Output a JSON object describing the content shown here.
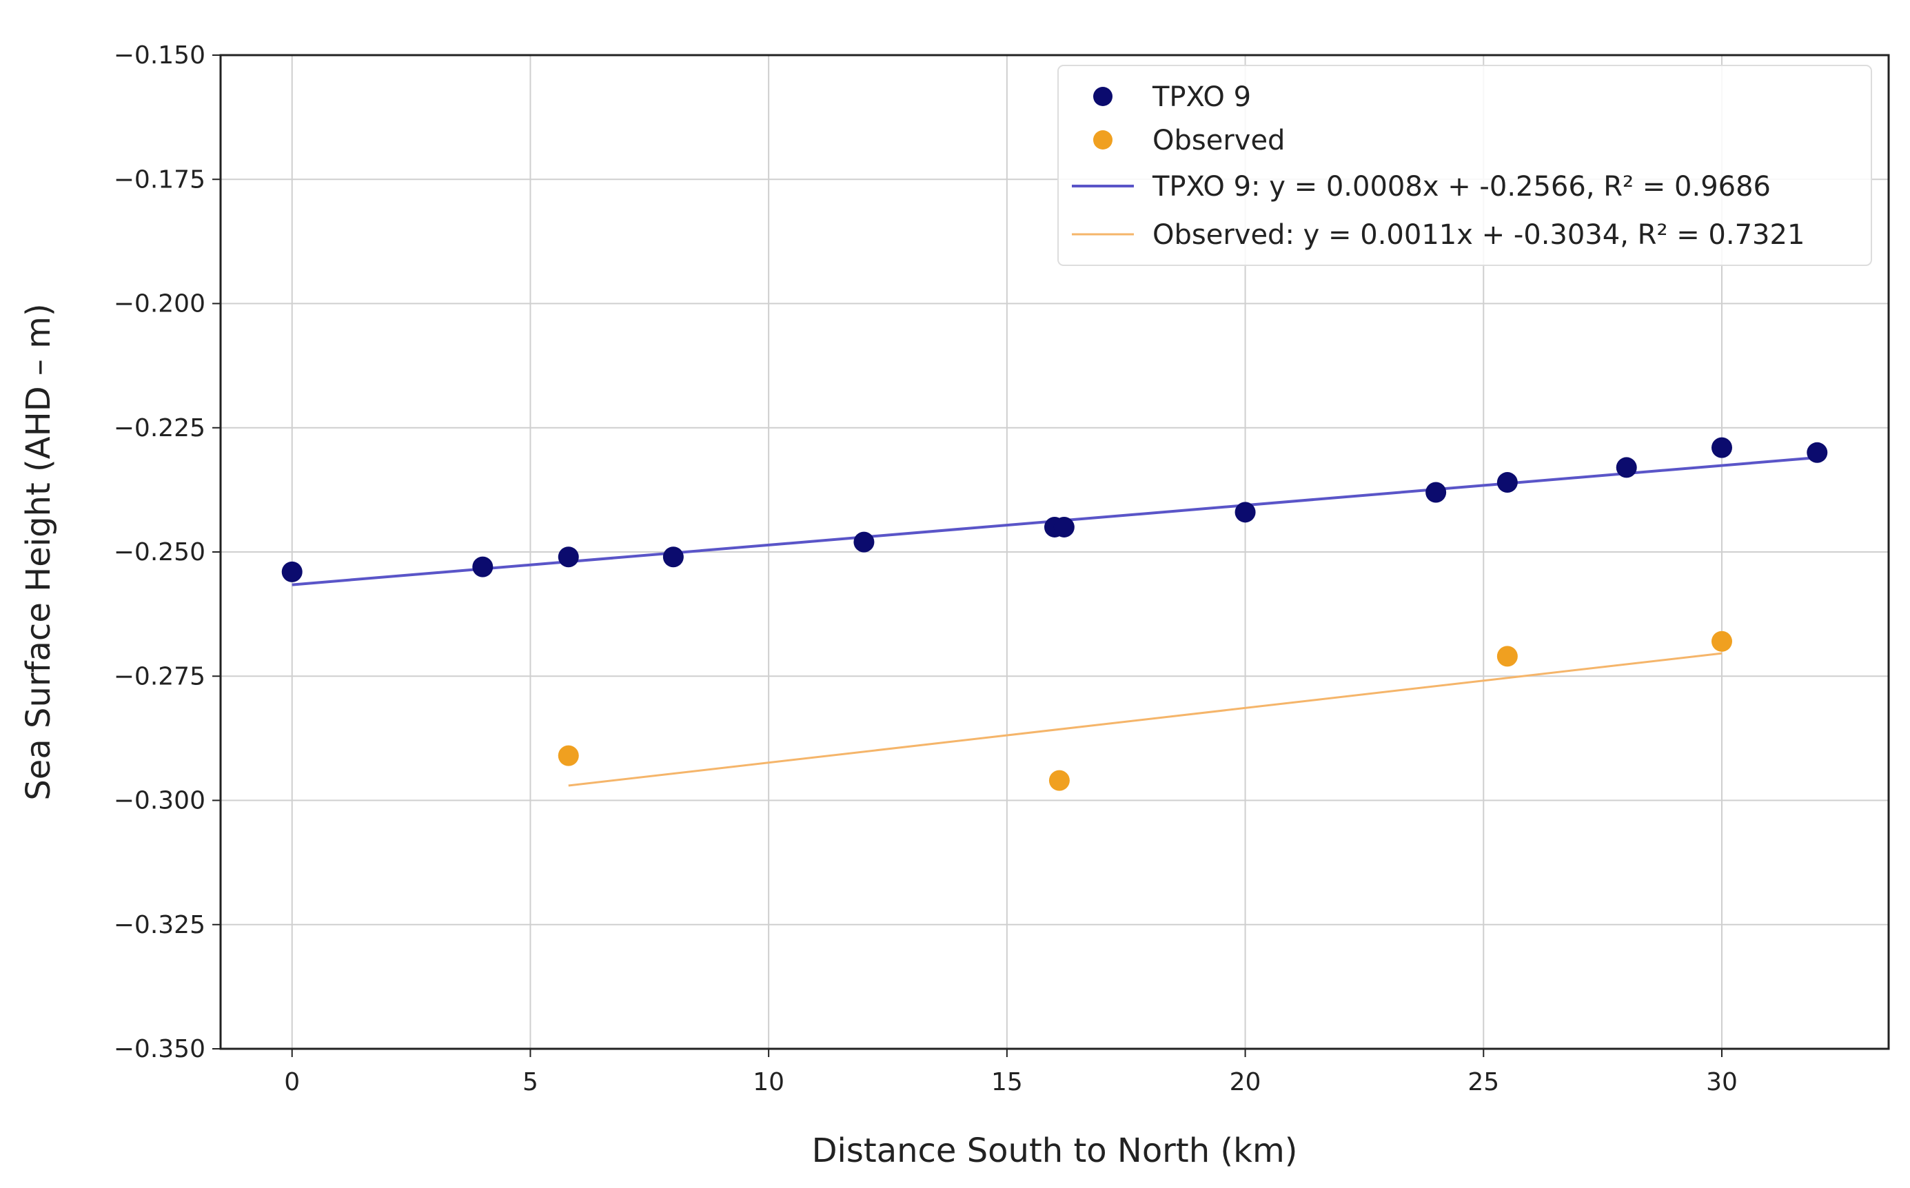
{
  "chart_data": {
    "type": "scatter",
    "title": "",
    "xlabel": "Distance South to North (km)",
    "ylabel": "Sea Surface Height (AHD – m)",
    "xlim": [
      -1.5,
      33.5
    ],
    "ylim": [
      -0.35,
      -0.15
    ],
    "x_ticks": [
      0,
      5,
      10,
      15,
      20,
      25,
      30
    ],
    "x_tick_labels": [
      "0",
      "5",
      "10",
      "15",
      "20",
      "25",
      "30"
    ],
    "y_ticks": [
      -0.35,
      -0.325,
      -0.3,
      -0.275,
      -0.25,
      -0.225,
      -0.2,
      -0.175,
      -0.15
    ],
    "y_tick_labels": [
      "−0.350",
      "−0.325",
      "−0.300",
      "−0.275",
      "−0.250",
      "−0.225",
      "−0.200",
      "−0.175",
      "−0.150"
    ],
    "grid": true,
    "legend_position": "top-right",
    "series": [
      {
        "name": "TPXO 9",
        "kind": "scatter",
        "color": "#0b0b6e",
        "points": [
          {
            "x": 0,
            "y": -0.254
          },
          {
            "x": 4,
            "y": -0.253
          },
          {
            "x": 5.8,
            "y": -0.251
          },
          {
            "x": 8,
            "y": -0.251
          },
          {
            "x": 12,
            "y": -0.248
          },
          {
            "x": 16,
            "y": -0.245
          },
          {
            "x": 16.2,
            "y": -0.245
          },
          {
            "x": 20,
            "y": -0.242
          },
          {
            "x": 24,
            "y": -0.238
          },
          {
            "x": 25.5,
            "y": -0.236
          },
          {
            "x": 28,
            "y": -0.233
          },
          {
            "x": 30,
            "y": -0.229
          },
          {
            "x": 32,
            "y": -0.23
          }
        ]
      },
      {
        "name": "Observed",
        "kind": "scatter",
        "color": "#f0a020",
        "points": [
          {
            "x": 5.8,
            "y": -0.291
          },
          {
            "x": 16.1,
            "y": -0.296
          },
          {
            "x": 25.5,
            "y": -0.271
          },
          {
            "x": 30,
            "y": -0.268
          }
        ]
      },
      {
        "name": "TPXO 9: y = 0.0008x + -0.2566, R² = 0.9686",
        "kind": "line",
        "color": "#5a55c8",
        "slope": 0.0008,
        "intercept": -0.2566,
        "x_range": [
          0,
          32
        ]
      },
      {
        "name": "Observed: y = 0.0011x + -0.3034, R² = 0.7321",
        "kind": "line",
        "color": "#f5b56a",
        "slope": 0.0011,
        "intercept": -0.3034,
        "x_range": [
          5.8,
          30
        ]
      }
    ]
  }
}
